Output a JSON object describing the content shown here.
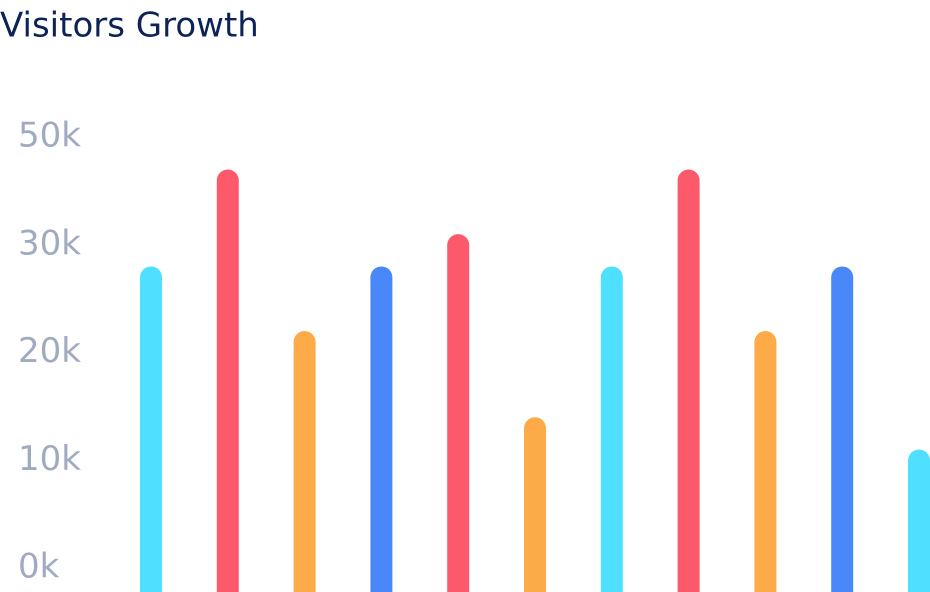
{
  "chart_data": {
    "type": "bar",
    "title": "Visitors Growth",
    "values": [
      28000,
      44000,
      22000,
      28000,
      32000,
      14000,
      28000,
      44000,
      22000,
      28000,
      11000
    ],
    "colors": [
      "#4fdfff",
      "#fc5a6a",
      "#fdaa48",
      "#4a88fa",
      "#fc5a6a",
      "#fdaa48",
      "#4fdfff",
      "#fc5a6a",
      "#fdaa48",
      "#4a88fa",
      "#4fdfff"
    ],
    "ylim": [
      0,
      50000
    ],
    "yticks": [
      {
        "value": 0,
        "label": "0k"
      },
      {
        "value": 10000,
        "label": "10k"
      },
      {
        "value": 20000,
        "label": "20k"
      },
      {
        "value": 30000,
        "label": "30k"
      },
      {
        "value": 50000,
        "label": "50k"
      }
    ],
    "grid": false
  }
}
